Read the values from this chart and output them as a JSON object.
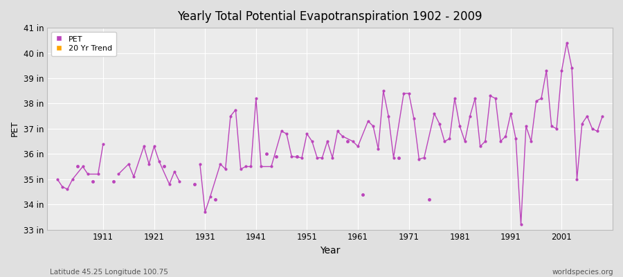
{
  "title": "Yearly Total Potential Evapotranspiration 1902 - 2009",
  "xlabel": "Year",
  "ylabel": "PET",
  "subtitle_left": "Latitude 45.25 Longitude 100.75",
  "subtitle_right": "worldspecies.org",
  "line_color": "#BB44BB",
  "trend_color": "#FFA500",
  "bg_color": "#E0E0E0",
  "plot_bg_color": "#EBEBEB",
  "ylim": [
    33,
    41
  ],
  "ytick_labels": [
    "33 in",
    "34 in",
    "35 in",
    "36 in",
    "37 in",
    "38 in",
    "39 in",
    "40 in",
    "41 in"
  ],
  "ytick_values": [
    33,
    34,
    35,
    36,
    37,
    38,
    39,
    40,
    41
  ],
  "data_years": [
    1902,
    1903,
    1904,
    1905,
    1907,
    1908,
    1910,
    1911,
    1914,
    1916,
    1917,
    1919,
    1920,
    1921,
    1922,
    1924,
    1925,
    1926,
    1930,
    1931,
    1932,
    1934,
    1935,
    1936,
    1937,
    1938,
    1939,
    1940,
    1941,
    1942,
    1944,
    1946,
    1947,
    1948,
    1950,
    1951,
    1952,
    1953,
    1954,
    1955,
    1956,
    1957,
    1958,
    1960,
    1961,
    1963,
    1964,
    1965,
    1966,
    1967,
    1968,
    1970,
    1971,
    1972,
    1973,
    1974,
    1976,
    1977,
    1978,
    1979,
    1980,
    1981,
    1982,
    1983,
    1984,
    1985,
    1986,
    1987,
    1988,
    1989,
    1990,
    1991,
    1992,
    1993,
    1994,
    1995,
    1996,
    1997,
    1998,
    1999,
    2000,
    2001,
    2002,
    2003,
    2004,
    2005,
    2006,
    2007,
    2008,
    2009
  ],
  "pet_values": [
    35.0,
    34.7,
    34.6,
    35.0,
    35.5,
    35.2,
    35.2,
    36.4,
    35.2,
    35.6,
    35.1,
    36.3,
    35.6,
    36.3,
    35.7,
    34.8,
    35.3,
    34.9,
    35.6,
    33.7,
    34.3,
    35.6,
    35.4,
    37.5,
    37.75,
    35.4,
    35.5,
    35.5,
    38.2,
    35.5,
    35.5,
    36.9,
    36.8,
    35.9,
    35.85,
    36.8,
    36.5,
    35.85,
    35.85,
    36.5,
    35.85,
    36.9,
    36.7,
    36.5,
    36.3,
    37.3,
    37.1,
    36.2,
    38.5,
    37.5,
    35.85,
    38.4,
    38.4,
    37.4,
    35.8,
    35.85,
    37.6,
    37.2,
    36.5,
    36.6,
    38.2,
    37.1,
    36.5,
    37.5,
    38.2,
    36.3,
    36.5,
    38.3,
    38.2,
    36.5,
    36.7,
    37.6,
    36.6,
    33.2,
    37.1,
    36.5,
    38.1,
    38.2,
    39.3,
    37.1,
    37.0,
    39.3,
    40.4,
    39.4,
    35.0,
    37.2,
    37.5,
    37.0,
    36.9,
    37.5
  ],
  "isolated_years": [
    1906,
    1909,
    1913,
    1923,
    1929,
    1933,
    1943,
    1945,
    1949,
    1959,
    1962,
    1969,
    1975
  ],
  "isolated_values": [
    35.5,
    34.9,
    34.9,
    35.5,
    34.8,
    34.2,
    36.0,
    35.9,
    35.9,
    36.5,
    34.4,
    35.85,
    34.2
  ],
  "xtick_years": [
    1911,
    1921,
    1931,
    1941,
    1951,
    1961,
    1971,
    1981,
    1991,
    2001
  ],
  "legend_entries": [
    "PET",
    "20 Yr Trend"
  ]
}
